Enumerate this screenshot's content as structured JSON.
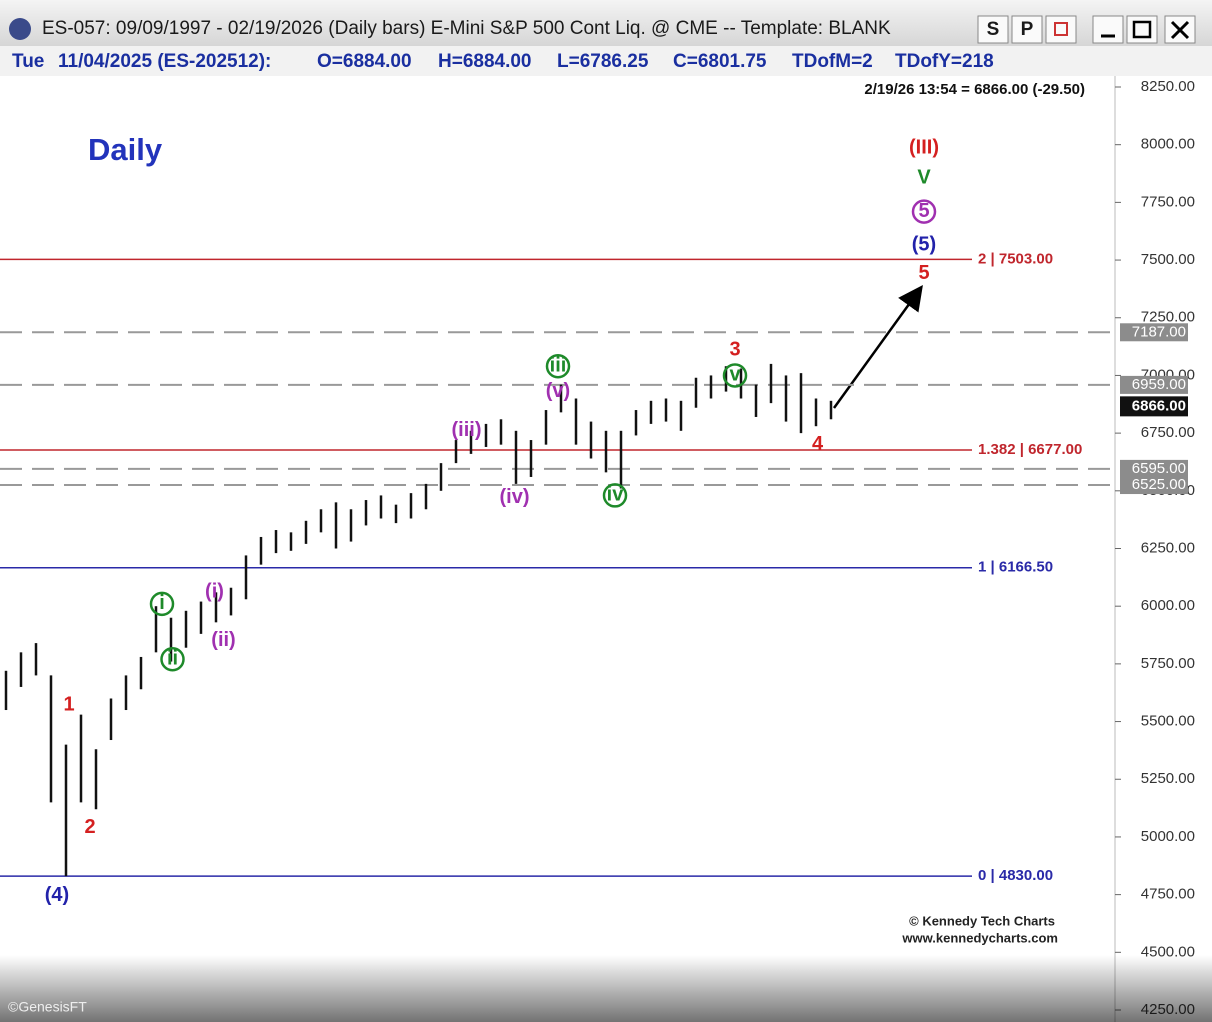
{
  "header": {
    "title": "ES-057:  09/09/1997 - 02/19/2026  (Daily bars)   E-Mini S&P 500 Cont Liq. @ CME  --  Template: BLANK",
    "buttons": [
      "S",
      "P"
    ]
  },
  "info": {
    "day": "Tue",
    "date": "11/04/2025 (ES-202512):",
    "open": "O=6884.00",
    "high": "H=6884.00",
    "low": "L=6786.25",
    "close": "C=6801.75",
    "tdofm": "TDofM=2",
    "tdofy": "TDofY=218"
  },
  "footer": {
    "vendor": "©GenesisFT"
  },
  "chart_data": {
    "type": "range-bar",
    "title": "Daily",
    "last_quote": "2/19/26 13:54 = 6866.00 (-29.50)",
    "credits": [
      "© Kennedy Tech Charts",
      "www.kennedycharts.com"
    ],
    "color": "#111111",
    "ylim": [
      4250,
      8250
    ],
    "yticks": [
      {
        "value": 8250,
        "label": "8250.00"
      },
      {
        "value": 8000,
        "label": "8000.00"
      },
      {
        "value": 7750,
        "label": "7750.00"
      },
      {
        "value": 7500,
        "label": "7500.00"
      },
      {
        "value": 7250,
        "label": "7250.00"
      },
      {
        "value": 7000,
        "label": "7000.00"
      },
      {
        "value": 6750,
        "label": "6750.00"
      },
      {
        "value": 6500,
        "label": "6500.00"
      },
      {
        "value": 6250,
        "label": "6250.00"
      },
      {
        "value": 6000,
        "label": "6000.00"
      },
      {
        "value": 5750,
        "label": "5750.00"
      },
      {
        "value": 5500,
        "label": "5500.00"
      },
      {
        "value": 5250,
        "label": "5250.00"
      },
      {
        "value": 5000,
        "label": "5000.00"
      },
      {
        "value": 4750,
        "label": "4750.00"
      },
      {
        "value": 4500,
        "label": "4500.00"
      },
      {
        "value": 4250,
        "label": "4250.00"
      }
    ],
    "high": [
      5720,
      5800,
      5840,
      5700,
      5400,
      5530,
      5380,
      5600,
      5700,
      5780,
      6000,
      5950,
      5980,
      6020,
      6060,
      6080,
      6220,
      6300,
      6330,
      6320,
      6370,
      6420,
      6450,
      6420,
      6460,
      6480,
      6440,
      6490,
      6530,
      6620,
      6720,
      6760,
      6790,
      6810,
      6760,
      6720,
      6850,
      6960,
      6900,
      6800,
      6760,
      6760,
      6850,
      6890,
      6900,
      6890,
      6990,
      7000,
      7040,
      7030,
      6960,
      7050,
      7000,
      7010,
      6900,
      6890
    ],
    "low": [
      5550,
      5650,
      5700,
      5150,
      4830,
      5150,
      5120,
      5420,
      5550,
      5640,
      5800,
      5760,
      5820,
      5880,
      5930,
      5960,
      6030,
      6180,
      6230,
      6240,
      6270,
      6320,
      6250,
      6280,
      6350,
      6380,
      6360,
      6380,
      6420,
      6500,
      6620,
      6660,
      6690,
      6700,
      6530,
      6560,
      6700,
      6840,
      6700,
      6640,
      6580,
      6510,
      6740,
      6790,
      6800,
      6760,
      6860,
      6900,
      6930,
      6900,
      6820,
      6880,
      6800,
      6750,
      6780,
      6810
    ],
    "fib_levels": [
      {
        "value": 7503,
        "label": "2 | 7503.00",
        "color": "#c0262d"
      },
      {
        "value": 6677,
        "label": "1.382 | 6677.00",
        "color": "#c0262d"
      },
      {
        "value": 6166.5,
        "label": "1 | 6166.50",
        "color": "#2a2aa8"
      },
      {
        "value": 4830,
        "label": "0 | 4830.00",
        "color": "#2a2aa8"
      }
    ],
    "price_levels": [
      {
        "value": 7187,
        "label": "7187.00"
      },
      {
        "value": 6959,
        "label": "6959.00"
      },
      {
        "value": 6595,
        "label": "6595.00"
      },
      {
        "value": 6525,
        "label": "6525.00"
      }
    ],
    "last_price": {
      "value": 6866,
      "label": "6866.00"
    },
    "annotations": [
      {
        "text": "1",
        "x": 4.2,
        "y": 5570,
        "color": "#d42020"
      },
      {
        "text": "2",
        "x": 5.6,
        "y": 5040,
        "color": "#d42020"
      },
      {
        "text": "(4)",
        "x": 3.4,
        "y": 4745,
        "color": "#2222aa"
      },
      {
        "text": "i",
        "x": 10.4,
        "y": 6010,
        "color": "#1e8a2a",
        "circled": true
      },
      {
        "text": "ii",
        "x": 11.1,
        "y": 5770,
        "color": "#1e8a2a",
        "circled": true
      },
      {
        "text": "(i)",
        "x": 13.9,
        "y": 6060,
        "color": "#a030b0"
      },
      {
        "text": "(ii)",
        "x": 14.5,
        "y": 5850,
        "color": "#a030b0"
      },
      {
        "text": "(iii)",
        "x": 30.7,
        "y": 6760,
        "color": "#a030b0"
      },
      {
        "text": "(iv)",
        "x": 33.9,
        "y": 6470,
        "color": "#a030b0"
      },
      {
        "text": "(v)",
        "x": 36.8,
        "y": 6930,
        "color": "#a030b0"
      },
      {
        "text": "iii",
        "x": 36.8,
        "y": 7040,
        "color": "#1e8a2a",
        "circled": true
      },
      {
        "text": "iv",
        "x": 40.6,
        "y": 6480,
        "color": "#1e8a2a",
        "circled": true
      },
      {
        "text": "v",
        "x": 48.6,
        "y": 7000,
        "color": "#1e8a2a",
        "circled": true
      },
      {
        "text": "3",
        "x": 48.6,
        "y": 7110,
        "color": "#d42020"
      },
      {
        "text": "4",
        "x": 54.1,
        "y": 6700,
        "color": "#d42020"
      },
      {
        "text": "5",
        "x": 61.2,
        "y": 7440,
        "color": "#d42020"
      },
      {
        "text": "(5)",
        "x": 61.2,
        "y": 7565,
        "color": "#2222aa"
      },
      {
        "text": "5",
        "x": 61.2,
        "y": 7710,
        "color": "#a030b0",
        "circled": true
      },
      {
        "text": "V",
        "x": 61.2,
        "y": 7855,
        "color": "#1e8a2a"
      },
      {
        "text": "(III)",
        "x": 61.2,
        "y": 7985,
        "color": "#d42020"
      }
    ]
  }
}
